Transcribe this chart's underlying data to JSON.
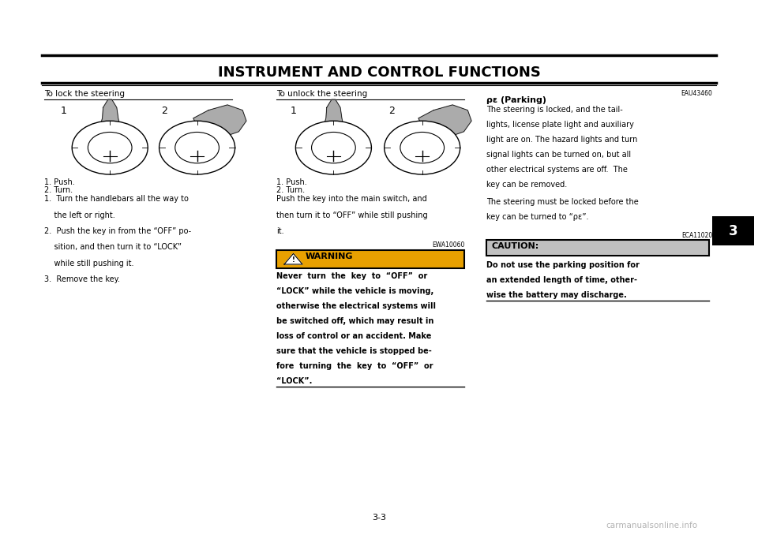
{
  "bg_color": "#ffffff",
  "page_number": "3-3",
  "title": "INSTRUMENT AND CONTROL FUNCTIONS",
  "title_fontsize": 13,
  "section_tab_label": "3",
  "lock_heading": "To lock the steering",
  "unlock_heading": "To unlock the steering",
  "parking_code": "EAU43460",
  "parking_title": "ρε (Parking)",
  "caution_code": "ECA11020",
  "caution_label": "CAUTION:",
  "warning_code": "EWA10060",
  "warning_label": "WARNING",
  "watermark": "carmanualsonline.info",
  "lock_steps_lines": [
    "1.  Turn the handlebars all the way to",
    "    the left or right.",
    "2.  Push the key in from the “OFF” po-",
    "    sition, and then turn it to “LOCK”",
    "    while still pushing it.",
    "3.  Remove the key."
  ],
  "unlock_lines": [
    "Push the key into the main switch, and",
    "then turn it to “OFF” while still pushing",
    "it."
  ],
  "warning_lines": [
    "Never  turn  the  key  to  “OFF”  or",
    "“LOCK” while the vehicle is moving,",
    "otherwise the electrical systems will",
    "be switched off, which may result in",
    "loss of control or an accident. Make",
    "sure that the vehicle is stopped be-",
    "fore  turning  the  key  to  “OFF”  or",
    "“LOCK”."
  ],
  "parking_lines": [
    "The steering is locked, and the tail-",
    "lights, license plate light and auxiliary",
    "light are on. The hazard lights and turn",
    "signal lights can be turned on, but all",
    "other electrical systems are off.  The",
    "key can be removed."
  ],
  "parking_lines2": [
    "The steering must be locked before the",
    "key can be turned to “ρε”."
  ],
  "caution_lines": [
    "Do not use the parking position for",
    "an extended length of time, other-",
    "wise the battery may discharge."
  ]
}
